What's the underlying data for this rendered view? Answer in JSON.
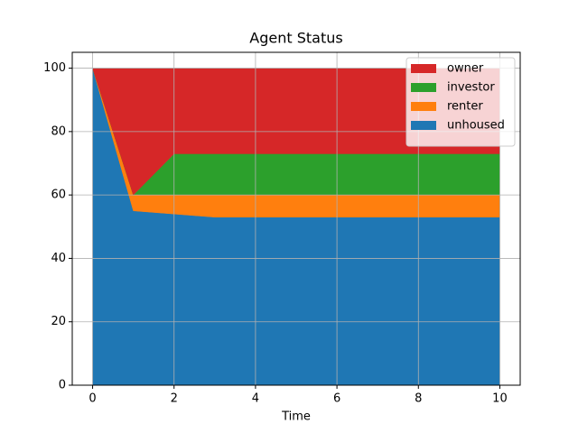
{
  "chart_data": {
    "type": "stackplot",
    "title": "Agent Status",
    "xlabel": "Time",
    "x": [
      0,
      1,
      2,
      3,
      4,
      5,
      6,
      7,
      8,
      9,
      10
    ],
    "series": [
      {
        "name": "unhoused",
        "color": "#1f77b4",
        "values": [
          100,
          55,
          54,
          53,
          53,
          53,
          53,
          53,
          53,
          53,
          53
        ]
      },
      {
        "name": "renter",
        "color": "#ff7f0e",
        "values": [
          0,
          5,
          6,
          7,
          7,
          7,
          7,
          7,
          7,
          7,
          7
        ]
      },
      {
        "name": "investor",
        "color": "#2ca02c",
        "values": [
          0,
          0,
          13,
          13,
          13,
          13,
          13,
          13,
          13,
          13,
          13
        ]
      },
      {
        "name": "owner",
        "color": "#d62728",
        "values": [
          0,
          40,
          27,
          27,
          27,
          27,
          27,
          27,
          27,
          27,
          27
        ]
      }
    ],
    "xlim": [
      -0.5,
      10.5
    ],
    "ylim": [
      0,
      105
    ],
    "xticks": [
      0,
      2,
      4,
      6,
      8,
      10
    ],
    "yticks": [
      0,
      20,
      40,
      60,
      80,
      100
    ],
    "grid": true,
    "legend": "upper right"
  }
}
